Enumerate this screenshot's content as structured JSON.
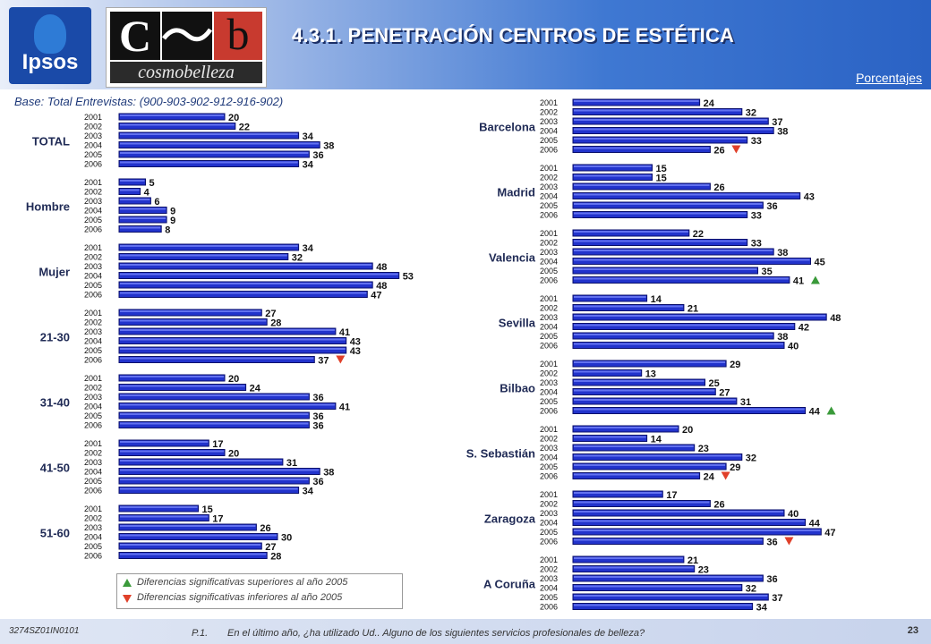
{
  "header": {
    "title": "4.3.1. PENETRACIÓN CENTROS DE ESTÉTICA",
    "units_label": "Porcentajes",
    "logo_ipsos": "Ipsos",
    "logo_cosmo": "cosmobelleza"
  },
  "base_note": "Base: Total Entrevistas: (900-903-902-912-916-902)",
  "legend": {
    "up_label": "Diferencias significativas superiores al año 2005",
    "down_label": "Diferencias significativas inferiores al año 2005"
  },
  "footer": {
    "code": "3274SZ01IN0101",
    "question_id": "P.1.",
    "question_text": "En el último año, ¿ha utilizado Ud.. Alguno de los siguientes servicios profesionales de belleza?",
    "page": "23"
  },
  "colors": {
    "bar": "#2233cc",
    "bar_dark": "#0a0f6b",
    "up": "#3a9a3a",
    "down": "#e0402a"
  },
  "chart_data": {
    "type": "bar",
    "orientation": "horizontal",
    "years": [
      "2001",
      "2002",
      "2003",
      "2004",
      "2005",
      "2006"
    ],
    "groups": [
      {
        "label": "TOTAL",
        "values": [
          20,
          22,
          34,
          38,
          36,
          34
        ],
        "marker": null
      },
      {
        "label": "Hombre",
        "values": [
          5,
          4,
          6,
          9,
          9,
          8
        ],
        "marker": null
      },
      {
        "label": "Mujer",
        "values": [
          34,
          32,
          48,
          53,
          48,
          47
        ],
        "marker": null
      },
      {
        "label": "21-30",
        "values": [
          27,
          28,
          41,
          43,
          43,
          37
        ],
        "marker": "down"
      },
      {
        "label": "31-40",
        "values": [
          20,
          24,
          36,
          41,
          36,
          36
        ],
        "marker": null
      },
      {
        "label": "41-50",
        "values": [
          17,
          20,
          31,
          38,
          36,
          34
        ],
        "marker": null
      },
      {
        "label": "51-60",
        "values": [
          15,
          17,
          26,
          30,
          27,
          28
        ],
        "marker": null
      },
      {
        "label": "Barcelona",
        "values": [
          24,
          32,
          37,
          38,
          33,
          26
        ],
        "marker": "down"
      },
      {
        "label": "Madrid",
        "values": [
          15,
          15,
          26,
          43,
          36,
          33
        ],
        "marker": null
      },
      {
        "label": "Valencia",
        "values": [
          22,
          33,
          38,
          45,
          35,
          41
        ],
        "marker": "up"
      },
      {
        "label": "Sevilla",
        "values": [
          14,
          21,
          48,
          42,
          38,
          40
        ],
        "marker": null
      },
      {
        "label": "Bilbao",
        "values": [
          29,
          13,
          25,
          27,
          31,
          44
        ],
        "marker": "up"
      },
      {
        "label": "S. Sebastián",
        "values": [
          20,
          14,
          23,
          32,
          29,
          24
        ],
        "marker": "down"
      },
      {
        "label": "Zaragoza",
        "values": [
          17,
          26,
          40,
          44,
          47,
          36
        ],
        "marker": "down"
      },
      {
        "label": "A Coruña",
        "values": [
          21,
          23,
          36,
          32,
          37,
          34
        ],
        "marker": null
      }
    ]
  }
}
